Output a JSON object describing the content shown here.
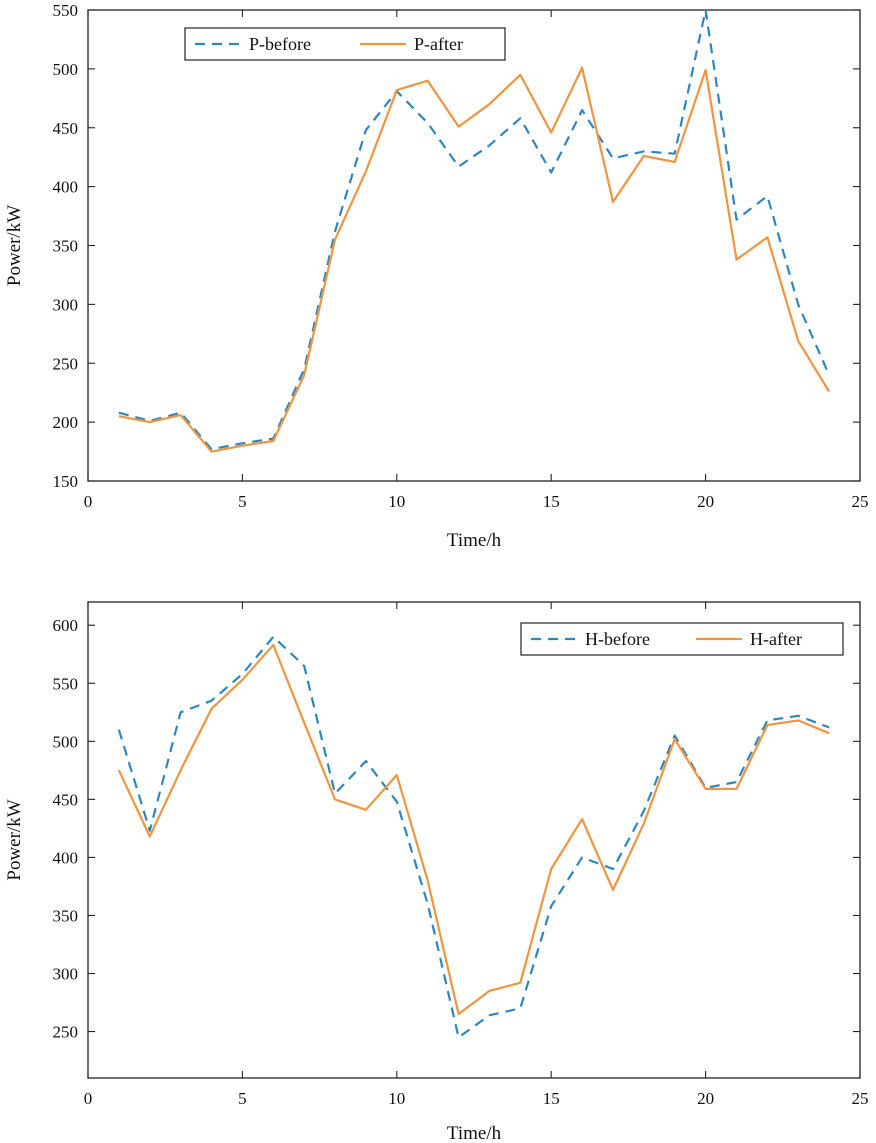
{
  "chart_data": [
    {
      "type": "line",
      "title": "",
      "xlabel": "Time/h",
      "ylabel": "Power/kW",
      "xlim": [
        0,
        25
      ],
      "ylim": [
        150,
        550
      ],
      "xticks": [
        0,
        5,
        10,
        15,
        20,
        25
      ],
      "yticks": [
        150,
        200,
        250,
        300,
        350,
        400,
        450,
        500,
        550
      ],
      "legend_position": "top-left",
      "x": [
        1,
        2,
        3,
        4,
        5,
        6,
        7,
        8,
        9,
        10,
        11,
        12,
        13,
        14,
        15,
        16,
        17,
        18,
        19,
        20,
        21,
        22,
        23,
        24
      ],
      "series": [
        {
          "name": "P-before",
          "style": "dashed",
          "color": "#2e86c1",
          "values": [
            208,
            201,
            208,
            177,
            182,
            186,
            245,
            362,
            448,
            481,
            454,
            417,
            435,
            458,
            412,
            465,
            424,
            430,
            428,
            550,
            372,
            392,
            300,
            240
          ]
        },
        {
          "name": "P-after",
          "style": "solid",
          "color": "#f0953f",
          "values": [
            205,
            200,
            206,
            175,
            180,
            184,
            240,
            355,
            413,
            482,
            490,
            451,
            470,
            495,
            446,
            501,
            387,
            426,
            421,
            499,
            338,
            357,
            269,
            226
          ]
        }
      ]
    },
    {
      "type": "line",
      "title": "",
      "xlabel": "Time/h",
      "ylabel": "Power/kW",
      "xlim": [
        0,
        25
      ],
      "ylim": [
        210,
        620
      ],
      "xticks": [
        0,
        5,
        10,
        15,
        20,
        25
      ],
      "yticks": [
        250,
        300,
        350,
        400,
        450,
        500,
        550,
        600
      ],
      "legend_position": "top-right",
      "x": [
        1,
        2,
        3,
        4,
        5,
        6,
        7,
        8,
        9,
        10,
        11,
        12,
        13,
        14,
        15,
        16,
        17,
        18,
        19,
        20,
        21,
        22,
        23,
        24
      ],
      "series": [
        {
          "name": "H-before",
          "style": "dashed",
          "color": "#2e86c1",
          "values": [
            510,
            423,
            525,
            535,
            558,
            590,
            565,
            455,
            483,
            448,
            360,
            245,
            264,
            270,
            358,
            400,
            390,
            440,
            505,
            460,
            465,
            518,
            522,
            512
          ]
        },
        {
          "name": "H-after",
          "style": "solid",
          "color": "#f0953f",
          "values": [
            475,
            418,
            475,
            528,
            553,
            583,
            516,
            450,
            441,
            471,
            380,
            265,
            285,
            292,
            390,
            433,
            372,
            429,
            502,
            459,
            459,
            514,
            518,
            507
          ]
        }
      ]
    }
  ]
}
